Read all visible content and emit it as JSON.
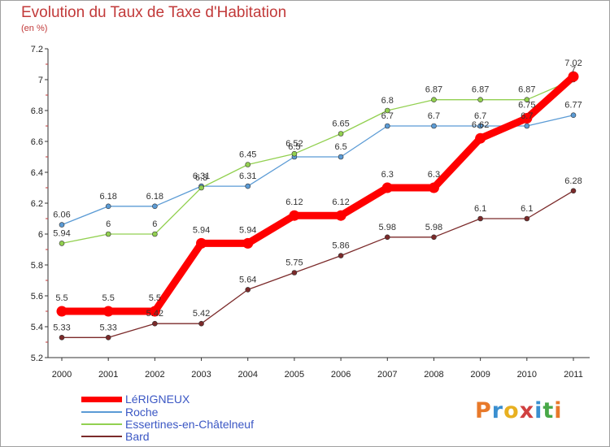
{
  "header": {
    "title": "Evolution du Taux de Taxe d'Habitation",
    "subtitle": "(en %)"
  },
  "brand": {
    "logo_text": "Proxiti",
    "logo_colors": [
      "#e8792a",
      "#3a8fd0",
      "#e8b020",
      "#d04040",
      "#3a8fd0",
      "#48a848",
      "#e8792a"
    ]
  },
  "chart_data": {
    "type": "line",
    "title": "Evolution du Taux de Taxe d'Habitation",
    "subtitle": "(en %)",
    "xlabel": "",
    "ylabel": "",
    "x": [
      "2000",
      "2001",
      "2002",
      "2003",
      "2004",
      "2005",
      "2006",
      "2007",
      "2008",
      "2009",
      "2010",
      "2011"
    ],
    "ylim": [
      5.2,
      7.2
    ],
    "yticks": [
      "5.2",
      "5.4",
      "5.6",
      "5.8",
      "6",
      "6.2",
      "6.4",
      "6.6",
      "6.8",
      "7",
      "7.2"
    ],
    "grid": false,
    "legend_position": "bottom-left",
    "series": [
      {
        "name": "Roche",
        "color": "#5b9bd5",
        "values": [
          6.06,
          6.18,
          6.18,
          6.31,
          6.31,
          6.5,
          6.5,
          6.7,
          6.7,
          6.7,
          6.7,
          6.77
        ],
        "labels": [
          "6.06",
          "6.18",
          "6.18",
          "6.31",
          "6.31",
          "6.5",
          "6.5",
          "6.7",
          "6.7",
          "6.7",
          "6.7",
          "6.77"
        ]
      },
      {
        "name": "Essertines-en-Châtelneuf",
        "color": "#92d050",
        "values": [
          5.94,
          6,
          6,
          6.3,
          6.45,
          6.52,
          6.65,
          6.8,
          6.87,
          6.87,
          6.87,
          7
        ],
        "labels": [
          "5.94",
          "6",
          "6",
          "6.3",
          "6.45",
          "6.52",
          "6.65",
          "6.8",
          "6.87",
          "6.87",
          "6.87",
          "7"
        ]
      },
      {
        "name": "Bard",
        "color": "#7b2a2a",
        "values": [
          5.33,
          5.33,
          5.42,
          5.42,
          5.64,
          5.75,
          5.86,
          5.98,
          5.98,
          6.1,
          6.1,
          6.28
        ],
        "labels": [
          "5.33",
          "5.33",
          "5.42",
          "5.42",
          "5.64",
          "5.75",
          "5.86",
          "5.98",
          "5.98",
          "6.1",
          "6.1",
          "6.28"
        ]
      },
      {
        "name": "LéRIGNEUX",
        "color": "#ff0000",
        "values": [
          5.5,
          5.5,
          5.5,
          5.94,
          5.94,
          6.12,
          6.12,
          6.3,
          6.3,
          6.62,
          6.75,
          7.02
        ],
        "labels": [
          "5.5",
          "5.5",
          "5.5",
          "5.94",
          "5.94",
          "6.12",
          "6.12",
          "6.3",
          "6.3",
          "6.62",
          "6.75",
          "7.02"
        ]
      }
    ]
  },
  "legend": {
    "items": [
      {
        "label": "LéRIGNEUX",
        "color": "#ff0000"
      },
      {
        "label": "Roche",
        "color": "#5b9bd5"
      },
      {
        "label": "Essertines-en-Châtelneuf",
        "color": "#92d050"
      },
      {
        "label": "Bard",
        "color": "#7b2a2a"
      }
    ]
  }
}
